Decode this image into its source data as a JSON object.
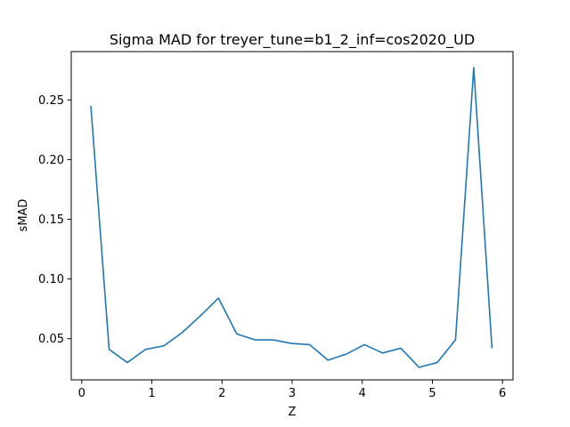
{
  "chart_data": {
    "type": "line",
    "title": "Sigma MAD for treyer_tune=b1_2_inf=cos2020_UD",
    "xlabel": "Z",
    "ylabel": "sMAD",
    "xlim": [
      -0.15,
      6.15
    ],
    "ylim": [
      0.0155,
      0.2905
    ],
    "xticks": [
      0,
      1,
      2,
      3,
      4,
      5,
      6
    ],
    "xtick_labels": [
      "0",
      "1",
      "2",
      "3",
      "4",
      "5",
      "6"
    ],
    "yticks": [
      0.05,
      0.1,
      0.15,
      0.2,
      0.25
    ],
    "ytick_labels": [
      "0.05",
      "0.10",
      "0.15",
      "0.20",
      "0.25"
    ],
    "grid": false,
    "legend": "none",
    "color": "#1f77b4",
    "x": [
      0.13,
      0.39,
      0.65,
      0.91,
      1.17,
      1.43,
      1.69,
      1.95,
      2.21,
      2.47,
      2.73,
      2.99,
      3.25,
      3.51,
      3.77,
      4.03,
      4.29,
      4.55,
      4.81,
      5.07,
      5.33,
      5.59,
      5.85
    ],
    "y": [
      0.245,
      0.041,
      0.03,
      0.041,
      0.044,
      0.055,
      0.069,
      0.084,
      0.054,
      0.049,
      0.049,
      0.046,
      0.045,
      0.032,
      0.037,
      0.045,
      0.038,
      0.042,
      0.026,
      0.03,
      0.049,
      0.277,
      0.042
    ]
  }
}
